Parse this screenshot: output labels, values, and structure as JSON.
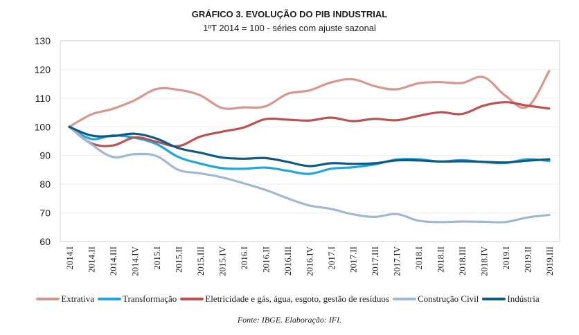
{
  "chart_data": {
    "type": "line",
    "title": "GRÁFICO 3. EVOLUÇÃO DO PIB INDUSTRIAL",
    "subtitle": "1ºT 2014 = 100 - séries com ajuste sazonal",
    "xlabel": "",
    "ylabel": "",
    "ylim": [
      60,
      130
    ],
    "yticks": [
      "60",
      "70",
      "80",
      "90",
      "100",
      "110",
      "120",
      "130"
    ],
    "ytick_values": [
      60,
      70,
      80,
      90,
      100,
      110,
      120,
      130
    ],
    "grid": true,
    "legend_position": "bottom",
    "categories": [
      "2014.I",
      "2014.II",
      "2014.III",
      "2014.IV",
      "2015.I",
      "2015.II",
      "2015.III",
      "2015.IV",
      "2016.I",
      "2016.II",
      "2016.III",
      "2016.IV",
      "2017.I",
      "2017.II",
      "2017.III",
      "2017.IV",
      "2018.I",
      "2018.II",
      "2018.III",
      "2018.IV",
      "2019.I",
      "2019.II",
      "2019.III"
    ],
    "series": [
      {
        "name": "Extrativa",
        "color": "#d9968c",
        "values": [
          100,
          104.3,
          106.3,
          109.3,
          113.2,
          112.9,
          111.0,
          106.6,
          106.8,
          107.2,
          111.5,
          112.7,
          115.5,
          116.6,
          114.2,
          113.1,
          115.2,
          115.6,
          115.3,
          117.3,
          110.8,
          107.0,
          119.5
        ]
      },
      {
        "name": "Transformação",
        "color": "#1aa7e8",
        "values": [
          100,
          95.8,
          97.0,
          96.2,
          94.0,
          89.5,
          87.2,
          85.6,
          85.4,
          85.8,
          84.7,
          83.6,
          85.4,
          85.9,
          86.9,
          88.6,
          88.7,
          87.9,
          88.4,
          87.7,
          87.4,
          88.7,
          88.1
        ]
      },
      {
        "name": "Eletricidade e gás, água, esgoto, gestão de resíduos",
        "color": "#c0504d",
        "values": [
          100,
          94.3,
          93.5,
          96.3,
          94.8,
          93.3,
          96.6,
          98.3,
          99.8,
          102.7,
          102.5,
          102.2,
          103.2,
          102.0,
          102.8,
          102.3,
          103.8,
          105.1,
          104.5,
          107.4,
          108.6,
          107.4,
          106.4
        ]
      },
      {
        "name": "Construção Civil",
        "color": "#9fb8d3",
        "values": [
          100,
          94.0,
          89.5,
          90.5,
          89.8,
          85.0,
          83.8,
          82.4,
          80.3,
          78.0,
          75.1,
          72.6,
          71.4,
          69.5,
          68.6,
          69.6,
          67.3,
          66.8,
          67.0,
          66.9,
          66.8,
          68.4,
          69.3
        ]
      },
      {
        "name": "Indústria",
        "color": "#0e5a87",
        "values": [
          100,
          97.0,
          96.8,
          97.6,
          95.9,
          92.6,
          91.0,
          89.3,
          88.9,
          89.1,
          87.8,
          86.3,
          87.3,
          87.1,
          87.3,
          88.3,
          88.3,
          87.9,
          88.0,
          87.8,
          87.6,
          88.2,
          88.7
        ]
      }
    ]
  },
  "source_note": "Fonte: IBGE. Elaboração: IFI."
}
